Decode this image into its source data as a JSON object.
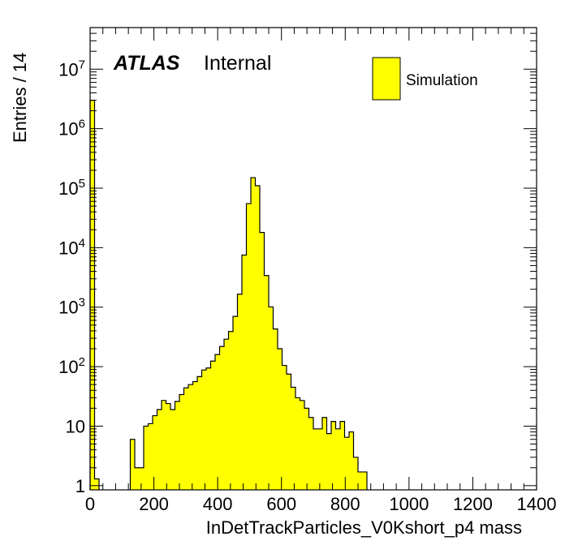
{
  "chart_data": {
    "type": "bar",
    "xlabel": "InDetTrackParticles_V0Kshort_p4 mass",
    "ylabel": "Entries / 14",
    "xlim": [
      0,
      1400
    ],
    "ylim": [
      0.85,
      50000000
    ],
    "log_y": true,
    "bin_width": 14,
    "x_tick_labels": [
      "0",
      "200",
      "400",
      "600",
      "800",
      "1000",
      "1200",
      "1400"
    ],
    "x_ticks": [
      0,
      200,
      400,
      600,
      800,
      1000,
      1200,
      1400
    ],
    "y_ticks": [
      1,
      10,
      100,
      1000,
      10000,
      100000,
      1000000,
      10000000
    ],
    "y_tick_labels": [
      {
        "base": "1",
        "exp": ""
      },
      {
        "base": "10",
        "exp": ""
      },
      {
        "base": "10",
        "exp": "2"
      },
      {
        "base": "10",
        "exp": "3"
      },
      {
        "base": "10",
        "exp": "4"
      },
      {
        "base": "10",
        "exp": "5"
      },
      {
        "base": "10",
        "exp": "6"
      },
      {
        "base": "10",
        "exp": "7"
      }
    ],
    "grid": false,
    "fill_color": "#ffff00",
    "line_color": "#000000",
    "legend": {
      "position": "top-right",
      "entries": [
        "Simulation"
      ]
    },
    "label_main": "ATLAS",
    "label_sub": "Internal",
    "series": [
      {
        "name": "Simulation",
        "bins": [
          [
            0,
            3000000
          ],
          [
            14,
            1.3
          ],
          [
            126,
            6
          ],
          [
            140,
            2
          ],
          [
            154,
            2
          ],
          [
            168,
            10
          ],
          [
            182,
            11
          ],
          [
            196,
            15
          ],
          [
            210,
            19
          ],
          [
            224,
            27
          ],
          [
            238,
            24
          ],
          [
            252,
            19
          ],
          [
            266,
            26
          ],
          [
            280,
            34
          ],
          [
            294,
            44
          ],
          [
            308,
            50
          ],
          [
            322,
            56
          ],
          [
            336,
            68
          ],
          [
            350,
            88
          ],
          [
            364,
            95
          ],
          [
            378,
            124
          ],
          [
            392,
            160
          ],
          [
            406,
            218
          ],
          [
            420,
            290
          ],
          [
            434,
            390
          ],
          [
            448,
            700
          ],
          [
            462,
            1650
          ],
          [
            476,
            7500
          ],
          [
            490,
            55000
          ],
          [
            504,
            150000
          ],
          [
            518,
            110000
          ],
          [
            532,
            18000
          ],
          [
            546,
            3400
          ],
          [
            560,
            1010
          ],
          [
            574,
            430
          ],
          [
            588,
            200
          ],
          [
            602,
            105
          ],
          [
            616,
            75
          ],
          [
            630,
            45
          ],
          [
            644,
            30
          ],
          [
            658,
            27
          ],
          [
            672,
            20
          ],
          [
            686,
            14
          ],
          [
            700,
            9
          ],
          [
            714,
            9
          ],
          [
            728,
            14
          ],
          [
            742,
            7.5
          ],
          [
            756,
            12
          ],
          [
            770,
            9
          ],
          [
            784,
            12
          ],
          [
            798,
            6.5
          ],
          [
            812,
            8
          ],
          [
            826,
            3
          ],
          [
            840,
            1.7
          ],
          [
            854,
            1.7
          ]
        ]
      }
    ]
  }
}
